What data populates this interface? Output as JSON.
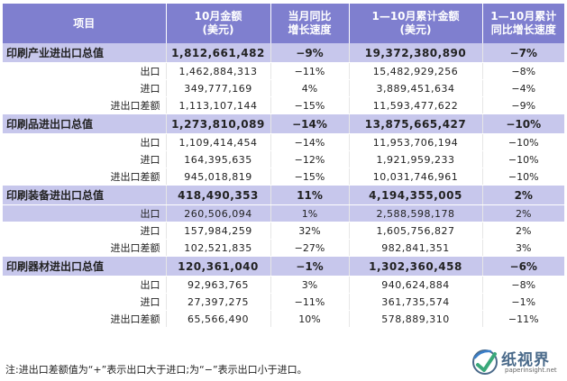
{
  "headers": {
    "item": "项目",
    "oct_amount": [
      "10月金额",
      "(美元)"
    ],
    "oct_growth": [
      "当月同比",
      "增长速度"
    ],
    "ytd_amount": [
      "1—10月累计金额",
      "(美元)"
    ],
    "ytd_growth": [
      "1—10月累计",
      "同比增长速度"
    ]
  },
  "rows": [
    {
      "type": "main",
      "name": "印刷产业进出口总值",
      "oct": "1,812,661,482",
      "oct_g": "−9%",
      "ytd": "19,372,380,890",
      "ytd_g": "−7%"
    },
    {
      "type": "sub",
      "name": "出口",
      "oct": "1,462,884,313",
      "oct_g": "−11%",
      "ytd": "15,482,929,256",
      "ytd_g": "−8%"
    },
    {
      "type": "sub",
      "name": "进口",
      "oct": "349,777,169",
      "oct_g": "4%",
      "ytd": "3,889,451,634",
      "ytd_g": "−4%"
    },
    {
      "type": "sub",
      "name": "进出口差额",
      "oct": "1,113,107,144",
      "oct_g": "−15%",
      "ytd": "11,593,477,622",
      "ytd_g": "−9%"
    },
    {
      "type": "main",
      "name": "印刷品进出口总值",
      "oct": "1,273,810,089",
      "oct_g": "−14%",
      "ytd": "13,875,665,427",
      "ytd_g": "−10%"
    },
    {
      "type": "sub",
      "name": "出口",
      "oct": "1,109,414,454",
      "oct_g": "−14%",
      "ytd": "11,953,706,194",
      "ytd_g": "−10%"
    },
    {
      "type": "sub",
      "name": "进口",
      "oct": "164,395,635",
      "oct_g": "−12%",
      "ytd": "1,921,959,233",
      "ytd_g": "−10%"
    },
    {
      "type": "sub",
      "name": "进出口差额",
      "oct": "945,018,819",
      "oct_g": "−15%",
      "ytd": "10,031,746,961",
      "ytd_g": "−10%"
    },
    {
      "type": "main",
      "name": "印刷装备进出口总值",
      "oct": "418,490,353",
      "oct_g": "11%",
      "ytd": "4,194,355,005",
      "ytd_g": "2%"
    },
    {
      "type": "hl",
      "name": "出口",
      "oct": "260,506,094",
      "oct_g": "1%",
      "ytd": "2,588,598,178",
      "ytd_g": "2%"
    },
    {
      "type": "sub",
      "name": "进口",
      "oct": "157,984,259",
      "oct_g": "32%",
      "ytd": "1,605,756,827",
      "ytd_g": "2%"
    },
    {
      "type": "sub",
      "name": "进出口差额",
      "oct": "102,521,835",
      "oct_g": "−27%",
      "ytd": "982,841,351",
      "ytd_g": "3%"
    },
    {
      "type": "main",
      "name": "印刷器材进出口总值",
      "oct": "120,361,040",
      "oct_g": "−1%",
      "ytd": "1,302,360,458",
      "ytd_g": "−6%"
    },
    {
      "type": "sub",
      "name": "出口",
      "oct": "92,963,765",
      "oct_g": "3%",
      "ytd": "940,624,884",
      "ytd_g": "−8%"
    },
    {
      "type": "sub",
      "name": "进口",
      "oct": "27,397,275",
      "oct_g": "−11%",
      "ytd": "361,735,574",
      "ytd_g": "−1%"
    },
    {
      "type": "sub",
      "name": "进出口差额",
      "oct": "65,566,490",
      "oct_g": "10%",
      "ytd": "578,889,310",
      "ytd_g": "−11%"
    }
  ],
  "note": "注:进出口差额值为“+”表示出口大于进口;为“−”表示出口小于进口。",
  "logo": {
    "cn": "纸视界",
    "en": "paperinsight.net",
    "icon": "paper-insight-logo-icon",
    "color": "#4a6a8a"
  }
}
